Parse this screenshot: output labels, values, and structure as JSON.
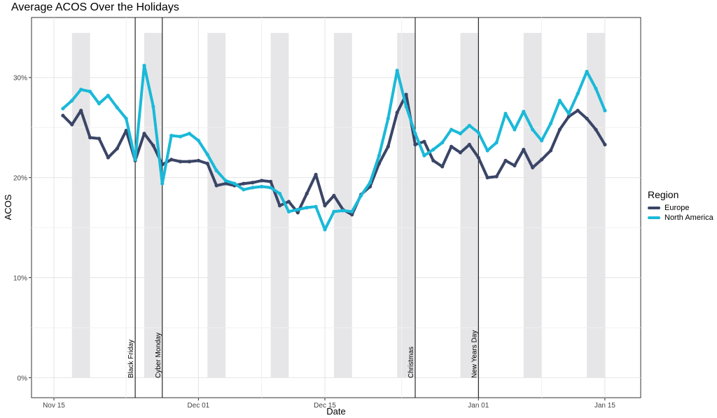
{
  "chart_data": {
    "type": "line",
    "title": "Average ACOS Over the Holidays",
    "xlabel": "Date",
    "ylabel": "ACOS",
    "x_ticks": [
      "Nov 15",
      "Dec 01",
      "Dec 15",
      "Jan 01",
      "Jan 15"
    ],
    "x_tick_days": [
      0,
      16,
      30,
      47,
      61
    ],
    "y_ticks": [
      "0%",
      "10%",
      "20%",
      "30%"
    ],
    "y_tick_values": [
      0,
      10,
      20,
      30
    ],
    "ylim": [
      -2,
      36
    ],
    "grid": true,
    "legend": {
      "title": "Region",
      "placement": "right"
    },
    "weekend_bands_day_start": [
      2,
      10,
      17,
      24,
      31,
      38,
      45,
      52,
      59
    ],
    "annotations": [
      {
        "label": "Black Friday",
        "day": 9
      },
      {
        "label": "Cyber Monday",
        "day": 12
      },
      {
        "label": "Christmas",
        "day": 40
      },
      {
        "label": "New Years Day",
        "day": 47
      }
    ],
    "series": [
      {
        "name": "Europe",
        "color": "#3a4566",
        "x_day_start": 1,
        "values": [
          26.2,
          25.3,
          26.7,
          24.0,
          23.9,
          22.0,
          22.9,
          24.7,
          21.7,
          24.4,
          23.2,
          21.3,
          21.8,
          21.6,
          21.6,
          21.7,
          21.4,
          19.2,
          19.4,
          19.2,
          19.4,
          19.5,
          19.7,
          19.6,
          17.2,
          17.6,
          16.5,
          18.4,
          20.3,
          17.2,
          18.2,
          16.8,
          16.3,
          18.3,
          19.1,
          21.4,
          23.1,
          26.5,
          28.3,
          23.3,
          23.6,
          21.7,
          21.1,
          23.1,
          22.5,
          23.3,
          22.0,
          20.0,
          20.1,
          21.7,
          21.2,
          22.8,
          21.0,
          21.8,
          22.7,
          24.8,
          26.1,
          26.7,
          25.9,
          24.8,
          23.3
        ]
      },
      {
        "name": "North America",
        "color": "#1ab9d8",
        "x_day_start": 1,
        "values": [
          26.9,
          27.7,
          28.8,
          28.6,
          27.4,
          28.2,
          27.0,
          25.9,
          21.8,
          31.2,
          27.1,
          19.4,
          24.2,
          24.1,
          24.4,
          23.7,
          22.3,
          20.7,
          19.7,
          19.4,
          18.8,
          19.0,
          19.1,
          19.0,
          18.4,
          16.6,
          16.8,
          17.0,
          17.1,
          14.8,
          16.6,
          16.7,
          16.6,
          18.2,
          19.5,
          22.2,
          25.9,
          30.7,
          27.1,
          24.4,
          22.2,
          22.8,
          23.5,
          24.8,
          24.4,
          25.2,
          24.5,
          22.7,
          23.5,
          26.4,
          24.8,
          26.6,
          24.8,
          23.7,
          25.4,
          27.7,
          26.4,
          28.4,
          30.6,
          28.9,
          26.7
        ]
      }
    ]
  }
}
